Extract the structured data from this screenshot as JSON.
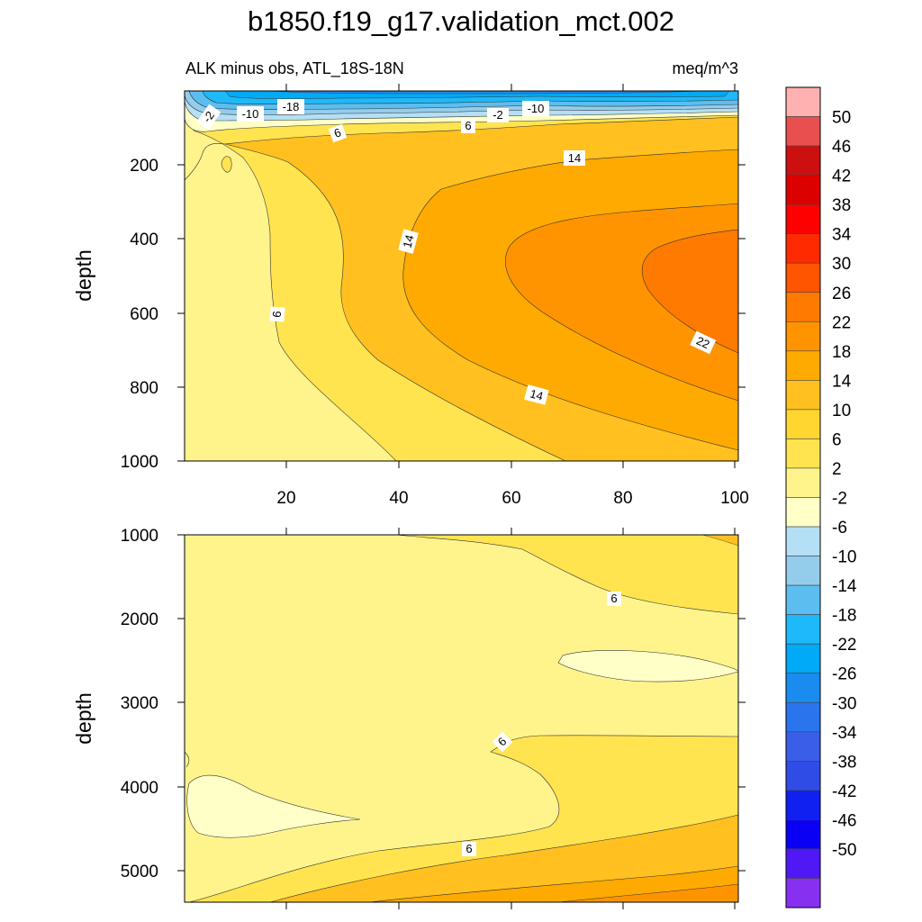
{
  "chart_data": {
    "type": "heatmap",
    "title": "b1850.f19_g17.validation_mct.002",
    "panels": [
      {
        "subtitle_left": "ALK minus obs, ATL_18S-18N",
        "subtitle_right": "meq/m^3",
        "xlabel": "",
        "ylabel": "depth",
        "xlim": [
          0,
          100
        ],
        "ylim": [
          0,
          1000
        ],
        "y_inverted": true,
        "x_ticks": [
          "20",
          "40",
          "60",
          "80",
          "100"
        ],
        "y_ticks": [
          "200",
          "400",
          "600",
          "800",
          "1000"
        ],
        "contour_labels": [
          "-18",
          "-10",
          "-2",
          "-2",
          "-10",
          "6",
          "6",
          "14",
          "14",
          "6",
          "22",
          "14"
        ]
      },
      {
        "xlabel": "",
        "ylabel": "depth",
        "xlim": [
          0,
          100
        ],
        "ylim": [
          1000,
          5400
        ],
        "y_inverted": true,
        "y_ticks": [
          "1000",
          "2000",
          "3000",
          "4000",
          "5000"
        ],
        "contour_labels": [
          "6",
          "6",
          "6"
        ]
      }
    ],
    "colorbar": {
      "levels": [
        "50",
        "46",
        "42",
        "38",
        "34",
        "30",
        "26",
        "22",
        "18",
        "14",
        "10",
        "6",
        "2",
        "-2",
        "-6",
        "-10",
        "-14",
        "-18",
        "-22",
        "-26",
        "-30",
        "-34",
        "-38",
        "-42",
        "-46",
        "-50"
      ],
      "colors": [
        "#FFB0B0",
        "#E85050",
        "#CC1010",
        "#DD0000",
        "#FF0000",
        "#FF2A00",
        "#FF5500",
        "#FF7A00",
        "#FF9400",
        "#FFAA00",
        "#FFC020",
        "#FFD530",
        "#FFE450",
        "#FFF48C",
        "#FFFFC8",
        "#B4DFF4",
        "#94CDEC",
        "#5CBEF0",
        "#1EB9F8",
        "#00AAF6",
        "#1A8CF0",
        "#2A74EE",
        "#3A5EE8",
        "#304CE6",
        "#1020F0",
        "#0A00F4",
        "#5018F4",
        "#8830F0"
      ]
    }
  }
}
